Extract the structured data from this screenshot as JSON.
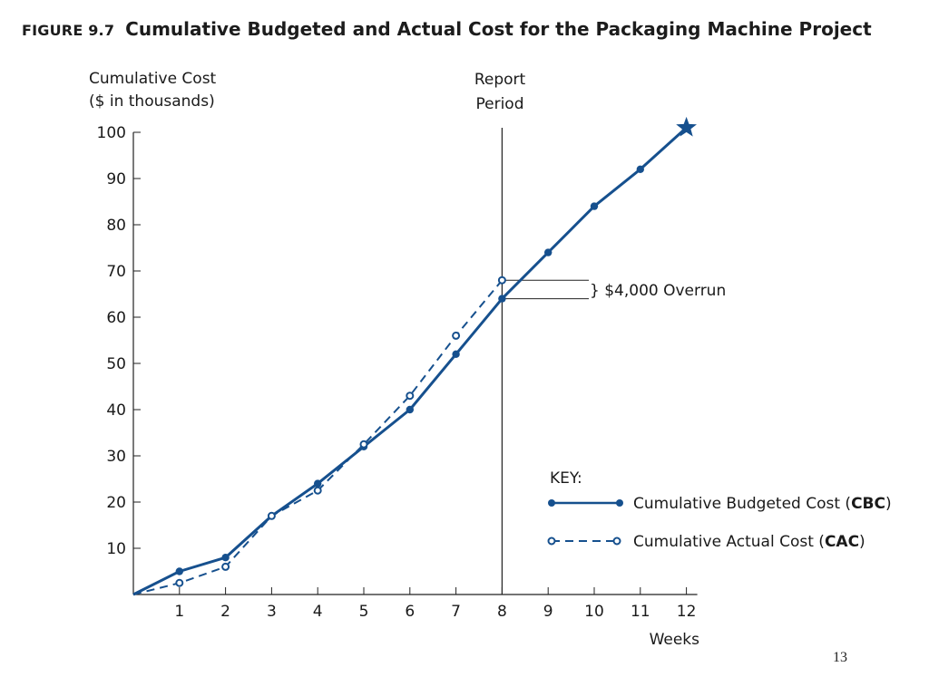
{
  "figure_label": "FIGURE 9.7",
  "title": "Cumulative Budgeted and Actual Cost for the Packaging Machine Project",
  "page_number": "13",
  "colors": {
    "series": "#16508e",
    "axis": "#222222"
  },
  "chart_data": {
    "type": "line",
    "ylabel_line1": "Cumulative Cost",
    "ylabel_line2": "($ in thousands)",
    "xlabel": "Weeks",
    "xlim": [
      0,
      12
    ],
    "ylim": [
      0,
      100
    ],
    "x_ticks": [
      "1",
      "2",
      "3",
      "4",
      "5",
      "6",
      "7",
      "8",
      "9",
      "10",
      "11",
      "12"
    ],
    "y_ticks": [
      "10",
      "20",
      "30",
      "40",
      "50",
      "60",
      "70",
      "80",
      "90",
      "100"
    ],
    "grid": false,
    "series": [
      {
        "name": "Cumulative Budgeted Cost",
        "abbr": "CBC",
        "style": "solid-filled-markers",
        "x": [
          0,
          1,
          2,
          3,
          4,
          5,
          6,
          7,
          8,
          9,
          10,
          11,
          12
        ],
        "y": [
          0,
          5,
          8,
          17,
          24,
          32,
          40,
          52,
          64,
          74,
          84,
          92,
          101
        ]
      },
      {
        "name": "Cumulative Actual Cost",
        "abbr": "CAC",
        "style": "dashed-open-markers",
        "x": [
          0,
          1,
          2,
          3,
          4,
          5,
          6,
          7,
          8
        ],
        "y": [
          0,
          2.5,
          6,
          17,
          22.5,
          32.5,
          43,
          56,
          68
        ]
      }
    ],
    "end_marker": "star",
    "report_period": {
      "x": 8,
      "label_line1": "Report",
      "label_line2": "Period"
    },
    "overrun_annotation": {
      "text": "} $4,000 Overrun",
      "from": 64,
      "to": 68
    },
    "legend": {
      "title": "KEY:",
      "placement": "bottom-right"
    }
  }
}
